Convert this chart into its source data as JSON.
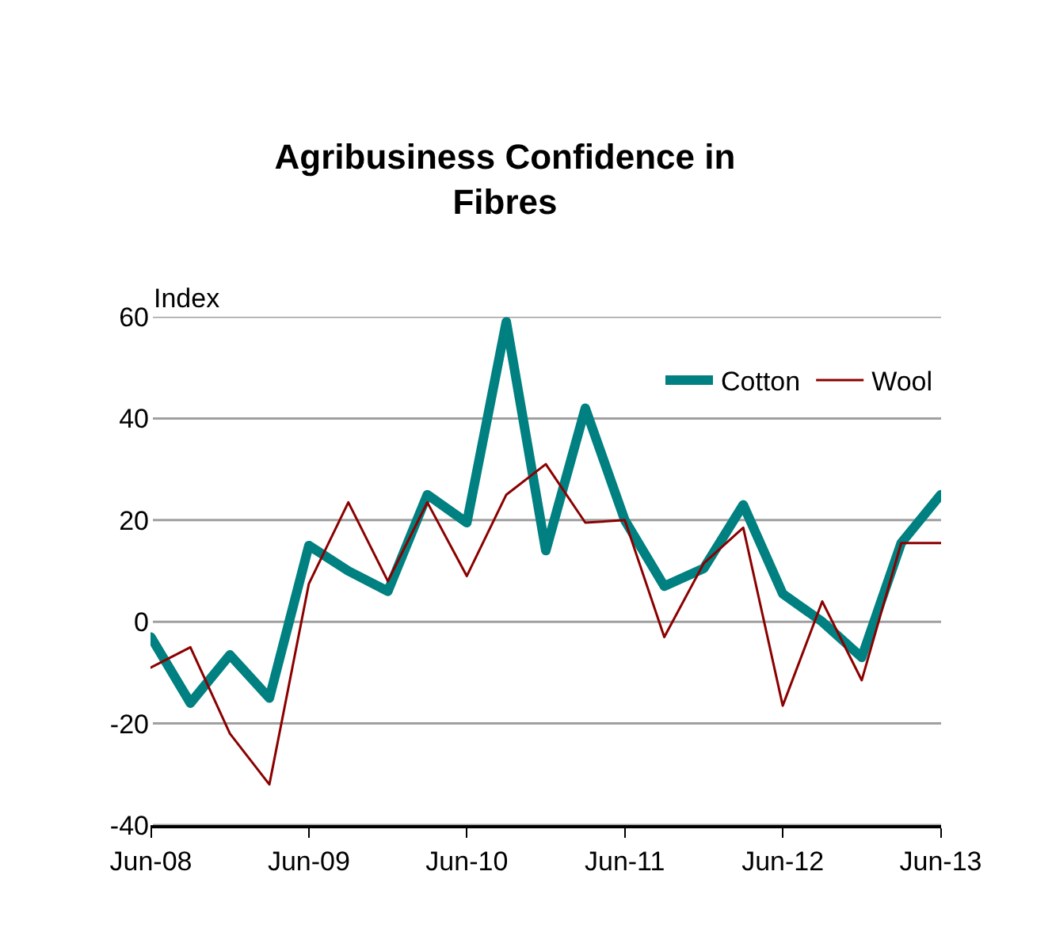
{
  "chart_data": {
    "type": "line",
    "title": "Agribusiness Confidence in\nFibres",
    "ylabel": "Index",
    "categories": [
      "Jun-08",
      null,
      null,
      null,
      "Jun-09",
      null,
      null,
      null,
      "Jun-10",
      null,
      null,
      null,
      "Jun-11",
      null,
      null,
      null,
      "Jun-12",
      null,
      null,
      null,
      "Jun-13"
    ],
    "series": [
      {
        "name": "Cotton",
        "color": "#008080",
        "values": [
          -3,
          -16,
          -6.5,
          -15,
          15,
          10,
          6,
          25,
          19.5,
          59,
          14,
          42,
          20,
          7,
          10.5,
          23,
          5.5,
          0,
          -7,
          15.5,
          25
        ]
      },
      {
        "name": "Wool",
        "color": "#8b0000",
        "values": [
          -9,
          -5,
          -22,
          -32,
          7.5,
          23.5,
          8,
          23.5,
          9,
          25,
          31,
          19.5,
          20,
          -3,
          11.5,
          18.5,
          -16.5,
          4,
          -11.5,
          15.5,
          15.5
        ]
      }
    ],
    "ylim": [
      -40,
      60
    ],
    "yticks": [
      -40,
      -20,
      0,
      20,
      40,
      60
    ],
    "grid": "y",
    "legend": "top right",
    "marker": "none",
    "line_style": "solid"
  }
}
